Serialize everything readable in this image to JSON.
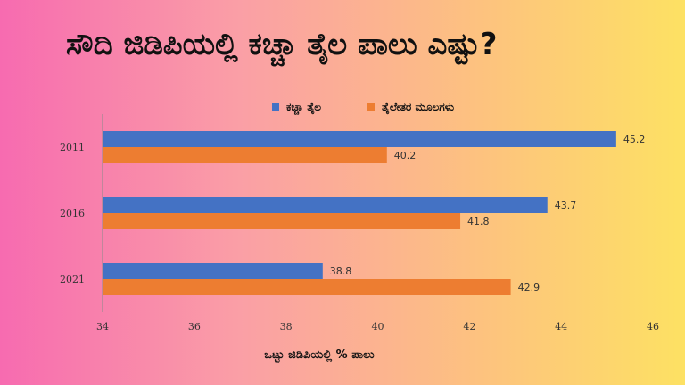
{
  "title": "ಸೌದಿ ಜಿಡಿಪಿಯಲ್ಲಿ ಕಚ್ಚಾ ತೈಲ ಪಾಲು ಎಷ್ಟು?",
  "chart_data": {
    "type": "bar",
    "orientation": "horizontal",
    "categories": [
      "2011",
      "2016",
      "2021"
    ],
    "series": [
      {
        "name": "ಕಚ್ಚಾ ತೈಲ",
        "values": [
          45.2,
          43.7,
          38.8
        ],
        "color": "#4472c4"
      },
      {
        "name": "ತೈಲೇತರ ಮೂಲಗಳು",
        "values": [
          40.2,
          41.8,
          42.9
        ],
        "color": "#ed7d31"
      }
    ],
    "xlim": [
      34,
      46
    ],
    "xticks": [
      "34",
      "36",
      "38",
      "40",
      "42",
      "44",
      "46"
    ],
    "xlabel": "ಒಟ್ಟು ಜಿಡಿಪಿಯಲ್ಲಿ % ಪಾಲು",
    "ylabel": "",
    "legend_position": "top-center",
    "grid": false
  }
}
